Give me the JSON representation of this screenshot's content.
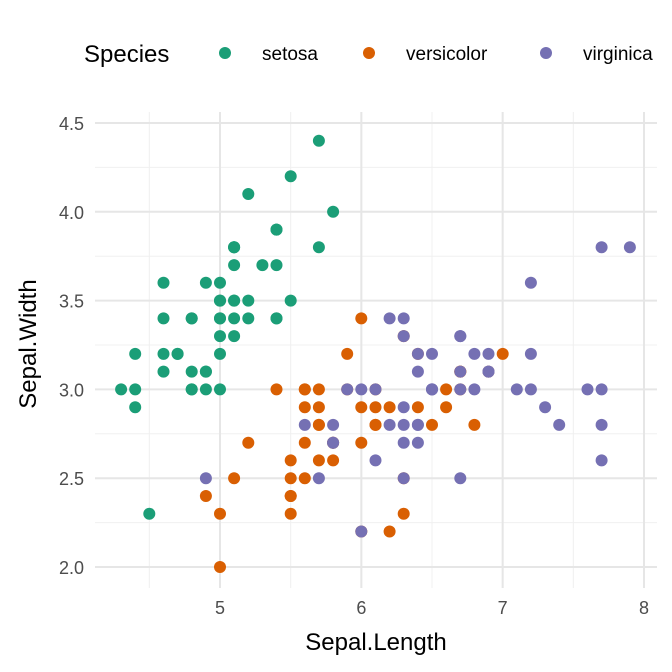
{
  "chart_data": {
    "type": "scatter",
    "title": "",
    "xlabel": "Sepal.Length",
    "ylabel": "Sepal.Width",
    "xlim": [
      4.1,
      8.1
    ],
    "ylim": [
      1.9,
      4.5
    ],
    "x_ticks": [
      5,
      6,
      7,
      8
    ],
    "y_ticks": [
      2.0,
      2.5,
      3.0,
      3.5,
      4.0,
      4.5
    ],
    "y_tick_labels": [
      "2.0",
      "2.5",
      "3.0",
      "3.5",
      "4.0",
      "4.5"
    ],
    "x_tick_labels": [
      "5",
      "6",
      "7",
      "8"
    ],
    "grid": true,
    "legend": {
      "title": "Species",
      "position": "top"
    },
    "series": [
      {
        "name": "setosa",
        "color": "#1B9E77",
        "points": [
          [
            5.1,
            3.5
          ],
          [
            4.9,
            3.0
          ],
          [
            4.7,
            3.2
          ],
          [
            4.6,
            3.1
          ],
          [
            5.0,
            3.6
          ],
          [
            5.4,
            3.9
          ],
          [
            4.6,
            3.4
          ],
          [
            5.0,
            3.4
          ],
          [
            4.4,
            2.9
          ],
          [
            4.9,
            3.1
          ],
          [
            5.4,
            3.7
          ],
          [
            4.8,
            3.4
          ],
          [
            4.8,
            3.0
          ],
          [
            4.3,
            3.0
          ],
          [
            5.8,
            4.0
          ],
          [
            5.7,
            4.4
          ],
          [
            5.4,
            3.9
          ],
          [
            5.1,
            3.5
          ],
          [
            5.7,
            3.8
          ],
          [
            5.1,
            3.8
          ],
          [
            5.4,
            3.4
          ],
          [
            5.1,
            3.7
          ],
          [
            4.6,
            3.6
          ],
          [
            5.1,
            3.3
          ],
          [
            4.8,
            3.4
          ],
          [
            5.0,
            3.0
          ],
          [
            5.0,
            3.4
          ],
          [
            5.2,
            3.5
          ],
          [
            5.2,
            3.4
          ],
          [
            4.7,
            3.2
          ],
          [
            4.8,
            3.1
          ],
          [
            5.4,
            3.4
          ],
          [
            5.2,
            4.1
          ],
          [
            5.5,
            4.2
          ],
          [
            4.9,
            3.1
          ],
          [
            5.0,
            3.2
          ],
          [
            5.5,
            3.5
          ],
          [
            4.9,
            3.6
          ],
          [
            4.4,
            3.0
          ],
          [
            5.1,
            3.4
          ],
          [
            5.0,
            3.5
          ],
          [
            4.5,
            2.3
          ],
          [
            4.4,
            3.2
          ],
          [
            5.0,
            3.5
          ],
          [
            5.1,
            3.8
          ],
          [
            4.8,
            3.0
          ],
          [
            5.1,
            3.8
          ],
          [
            4.6,
            3.2
          ],
          [
            5.3,
            3.7
          ],
          [
            5.0,
            3.3
          ]
        ]
      },
      {
        "name": "versicolor",
        "color": "#D95F02",
        "points": [
          [
            7.0,
            3.2
          ],
          [
            6.4,
            3.2
          ],
          [
            6.9,
            3.1
          ],
          [
            5.5,
            2.3
          ],
          [
            6.5,
            2.8
          ],
          [
            5.7,
            2.8
          ],
          [
            6.3,
            3.3
          ],
          [
            4.9,
            2.4
          ],
          [
            6.6,
            2.9
          ],
          [
            5.2,
            2.7
          ],
          [
            5.0,
            2.0
          ],
          [
            5.9,
            3.0
          ],
          [
            6.0,
            2.2
          ],
          [
            6.1,
            2.9
          ],
          [
            5.6,
            2.9
          ],
          [
            6.7,
            3.1
          ],
          [
            5.6,
            3.0
          ],
          [
            5.8,
            2.7
          ],
          [
            6.2,
            2.2
          ],
          [
            5.6,
            2.5
          ],
          [
            5.9,
            3.2
          ],
          [
            6.1,
            2.8
          ],
          [
            6.3,
            2.5
          ],
          [
            6.1,
            2.8
          ],
          [
            6.4,
            2.9
          ],
          [
            6.6,
            3.0
          ],
          [
            6.8,
            2.8
          ],
          [
            6.7,
            3.0
          ],
          [
            6.0,
            2.9
          ],
          [
            5.7,
            2.6
          ],
          [
            5.5,
            2.4
          ],
          [
            5.5,
            2.4
          ],
          [
            5.8,
            2.7
          ],
          [
            6.0,
            2.7
          ],
          [
            5.4,
            3.0
          ],
          [
            6.0,
            3.4
          ],
          [
            6.7,
            3.1
          ],
          [
            6.3,
            2.3
          ],
          [
            5.6,
            3.0
          ],
          [
            5.5,
            2.5
          ],
          [
            5.5,
            2.6
          ],
          [
            6.1,
            3.0
          ],
          [
            5.8,
            2.6
          ],
          [
            5.0,
            2.3
          ],
          [
            5.6,
            2.7
          ],
          [
            5.7,
            3.0
          ],
          [
            5.7,
            2.9
          ],
          [
            6.2,
            2.9
          ],
          [
            5.1,
            2.5
          ],
          [
            5.7,
            2.8
          ]
        ]
      },
      {
        "name": "virginica",
        "color": "#7570B3",
        "points": [
          [
            6.3,
            3.3
          ],
          [
            5.8,
            2.7
          ],
          [
            7.1,
            3.0
          ],
          [
            6.3,
            2.9
          ],
          [
            6.5,
            3.0
          ],
          [
            7.6,
            3.0
          ],
          [
            4.9,
            2.5
          ],
          [
            7.3,
            2.9
          ],
          [
            6.7,
            2.5
          ],
          [
            7.2,
            3.6
          ],
          [
            6.5,
            3.2
          ],
          [
            6.4,
            2.7
          ],
          [
            6.8,
            3.0
          ],
          [
            5.7,
            2.5
          ],
          [
            5.8,
            2.8
          ],
          [
            6.4,
            3.2
          ],
          [
            6.5,
            3.0
          ],
          [
            7.7,
            3.8
          ],
          [
            7.7,
            2.6
          ],
          [
            6.0,
            2.2
          ],
          [
            6.9,
            3.2
          ],
          [
            5.6,
            2.8
          ],
          [
            7.7,
            2.8
          ],
          [
            6.3,
            2.7
          ],
          [
            6.7,
            3.3
          ],
          [
            7.2,
            3.2
          ],
          [
            6.2,
            2.8
          ],
          [
            6.1,
            3.0
          ],
          [
            6.4,
            2.8
          ],
          [
            7.2,
            3.0
          ],
          [
            7.4,
            2.8
          ],
          [
            7.9,
            3.8
          ],
          [
            6.4,
            2.8
          ],
          [
            6.3,
            2.8
          ],
          [
            6.1,
            2.6
          ],
          [
            7.7,
            3.0
          ],
          [
            6.3,
            3.4
          ],
          [
            6.4,
            3.1
          ],
          [
            6.0,
            3.0
          ],
          [
            6.9,
            3.1
          ],
          [
            6.7,
            3.1
          ],
          [
            6.9,
            3.1
          ],
          [
            5.8,
            2.7
          ],
          [
            6.8,
            3.2
          ],
          [
            6.7,
            3.3
          ],
          [
            6.7,
            3.0
          ],
          [
            6.3,
            2.5
          ],
          [
            6.5,
            3.0
          ],
          [
            6.2,
            3.4
          ],
          [
            5.9,
            3.0
          ]
        ]
      }
    ]
  }
}
